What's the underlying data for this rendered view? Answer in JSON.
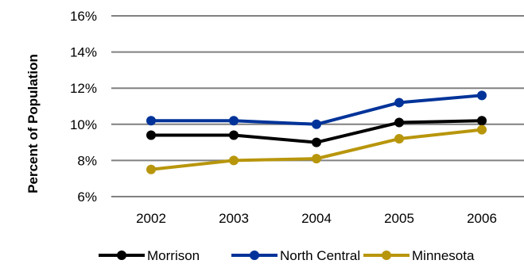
{
  "chart_data": {
    "type": "line",
    "title": "",
    "xlabel": "",
    "ylabel": "Percent of Population",
    "x": [
      "2002",
      "2003",
      "2004",
      "2005",
      "2006"
    ],
    "ylim": [
      6,
      16
    ],
    "yticks": [
      6,
      8,
      10,
      12,
      14,
      16
    ],
    "ytick_labels": [
      "6%",
      "8%",
      "10%",
      "12%",
      "14%",
      "16%"
    ],
    "grid": true,
    "legend_position": "bottom",
    "series": [
      {
        "name": "Morrison",
        "color": "#000000",
        "values": [
          9.4,
          9.4,
          9.0,
          10.1,
          10.2
        ]
      },
      {
        "name": "North Central",
        "color": "#003399",
        "values": [
          10.2,
          10.2,
          10.0,
          11.2,
          11.6
        ]
      },
      {
        "name": "Minnesota",
        "color": "#B8960C",
        "values": [
          7.5,
          8.0,
          8.1,
          9.2,
          9.7
        ]
      }
    ]
  }
}
